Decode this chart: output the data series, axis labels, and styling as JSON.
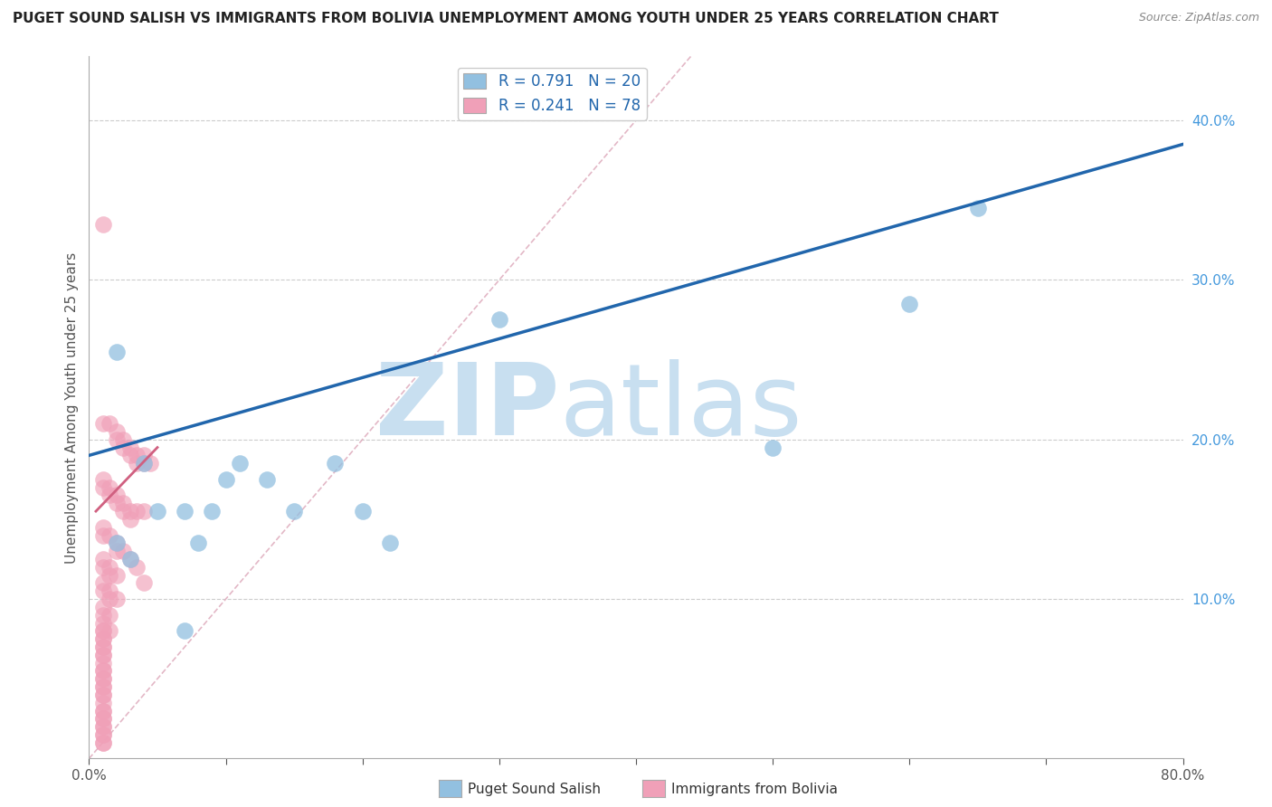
{
  "title": "PUGET SOUND SALISH VS IMMIGRANTS FROM BOLIVIA UNEMPLOYMENT AMONG YOUTH UNDER 25 YEARS CORRELATION CHART",
  "source": "Source: ZipAtlas.com",
  "ylabel": "Unemployment Among Youth under 25 years",
  "xlim": [
    0.0,
    0.8
  ],
  "ylim": [
    0.0,
    0.44
  ],
  "x_ticks": [
    0.0,
    0.1,
    0.2,
    0.3,
    0.4,
    0.5,
    0.6,
    0.7,
    0.8
  ],
  "y_ticks_right": [
    0.1,
    0.2,
    0.3,
    0.4
  ],
  "y_tick_labels_right": [
    "10.0%",
    "20.0%",
    "30.0%",
    "40.0%"
  ],
  "grid_color": "#cccccc",
  "background_color": "#ffffff",
  "watermark_zip": "ZIP",
  "watermark_atlas": "atlas",
  "watermark_color": "#c8dff0",
  "blue_color": "#92c0e0",
  "pink_color": "#f0a0b8",
  "blue_line_color": "#2166ac",
  "pink_line_color": "#d06080",
  "diag_line_color": "#e0b0c0",
  "legend_label_blue": "R = 0.791   N = 20",
  "legend_label_pink": "R = 0.241   N = 78",
  "legend_text_color": "#2166ac",
  "blue_points_x": [
    0.02,
    0.02,
    0.04,
    0.05,
    0.07,
    0.08,
    0.09,
    0.1,
    0.11,
    0.13,
    0.15,
    0.18,
    0.2,
    0.22,
    0.3,
    0.5,
    0.6,
    0.65,
    0.03,
    0.07
  ],
  "blue_points_y": [
    0.255,
    0.135,
    0.185,
    0.155,
    0.155,
    0.135,
    0.155,
    0.175,
    0.185,
    0.175,
    0.155,
    0.185,
    0.155,
    0.135,
    0.275,
    0.195,
    0.285,
    0.345,
    0.125,
    0.08
  ],
  "pink_points_x": [
    0.01,
    0.01,
    0.015,
    0.02,
    0.02,
    0.025,
    0.025,
    0.03,
    0.03,
    0.035,
    0.035,
    0.04,
    0.04,
    0.045,
    0.01,
    0.01,
    0.015,
    0.015,
    0.02,
    0.02,
    0.025,
    0.025,
    0.03,
    0.03,
    0.035,
    0.04,
    0.01,
    0.01,
    0.015,
    0.02,
    0.02,
    0.025,
    0.01,
    0.01,
    0.015,
    0.015,
    0.02,
    0.01,
    0.01,
    0.015,
    0.015,
    0.02,
    0.01,
    0.01,
    0.015,
    0.01,
    0.01,
    0.015,
    0.01,
    0.01,
    0.01,
    0.01,
    0.01,
    0.01,
    0.01,
    0.01,
    0.01,
    0.01,
    0.01,
    0.01,
    0.01,
    0.01,
    0.03,
    0.035,
    0.04,
    0.01,
    0.01,
    0.01,
    0.01,
    0.01,
    0.01,
    0.01,
    0.01,
    0.01,
    0.01,
    0.01,
    0.01,
    0.01
  ],
  "pink_points_y": [
    0.335,
    0.21,
    0.21,
    0.205,
    0.2,
    0.2,
    0.195,
    0.195,
    0.19,
    0.19,
    0.185,
    0.185,
    0.19,
    0.185,
    0.175,
    0.17,
    0.17,
    0.165,
    0.165,
    0.16,
    0.16,
    0.155,
    0.155,
    0.15,
    0.155,
    0.155,
    0.145,
    0.14,
    0.14,
    0.135,
    0.13,
    0.13,
    0.125,
    0.12,
    0.12,
    0.115,
    0.115,
    0.11,
    0.105,
    0.105,
    0.1,
    0.1,
    0.095,
    0.09,
    0.09,
    0.085,
    0.08,
    0.08,
    0.075,
    0.07,
    0.065,
    0.06,
    0.055,
    0.05,
    0.045,
    0.04,
    0.035,
    0.03,
    0.025,
    0.02,
    0.015,
    0.01,
    0.125,
    0.12,
    0.11,
    0.08,
    0.075,
    0.07,
    0.065,
    0.055,
    0.05,
    0.045,
    0.04,
    0.03,
    0.025,
    0.02,
    0.015,
    0.01
  ],
  "blue_line_x0": 0.0,
  "blue_line_y0": 0.19,
  "blue_line_x1": 0.8,
  "blue_line_y1": 0.385,
  "pink_line_x0": 0.005,
  "pink_line_y0": 0.155,
  "pink_line_x1": 0.05,
  "pink_line_y1": 0.195,
  "diag_line_x0": 0.0,
  "diag_line_y0": 0.0,
  "diag_line_x1": 0.44,
  "diag_line_y1": 0.44
}
